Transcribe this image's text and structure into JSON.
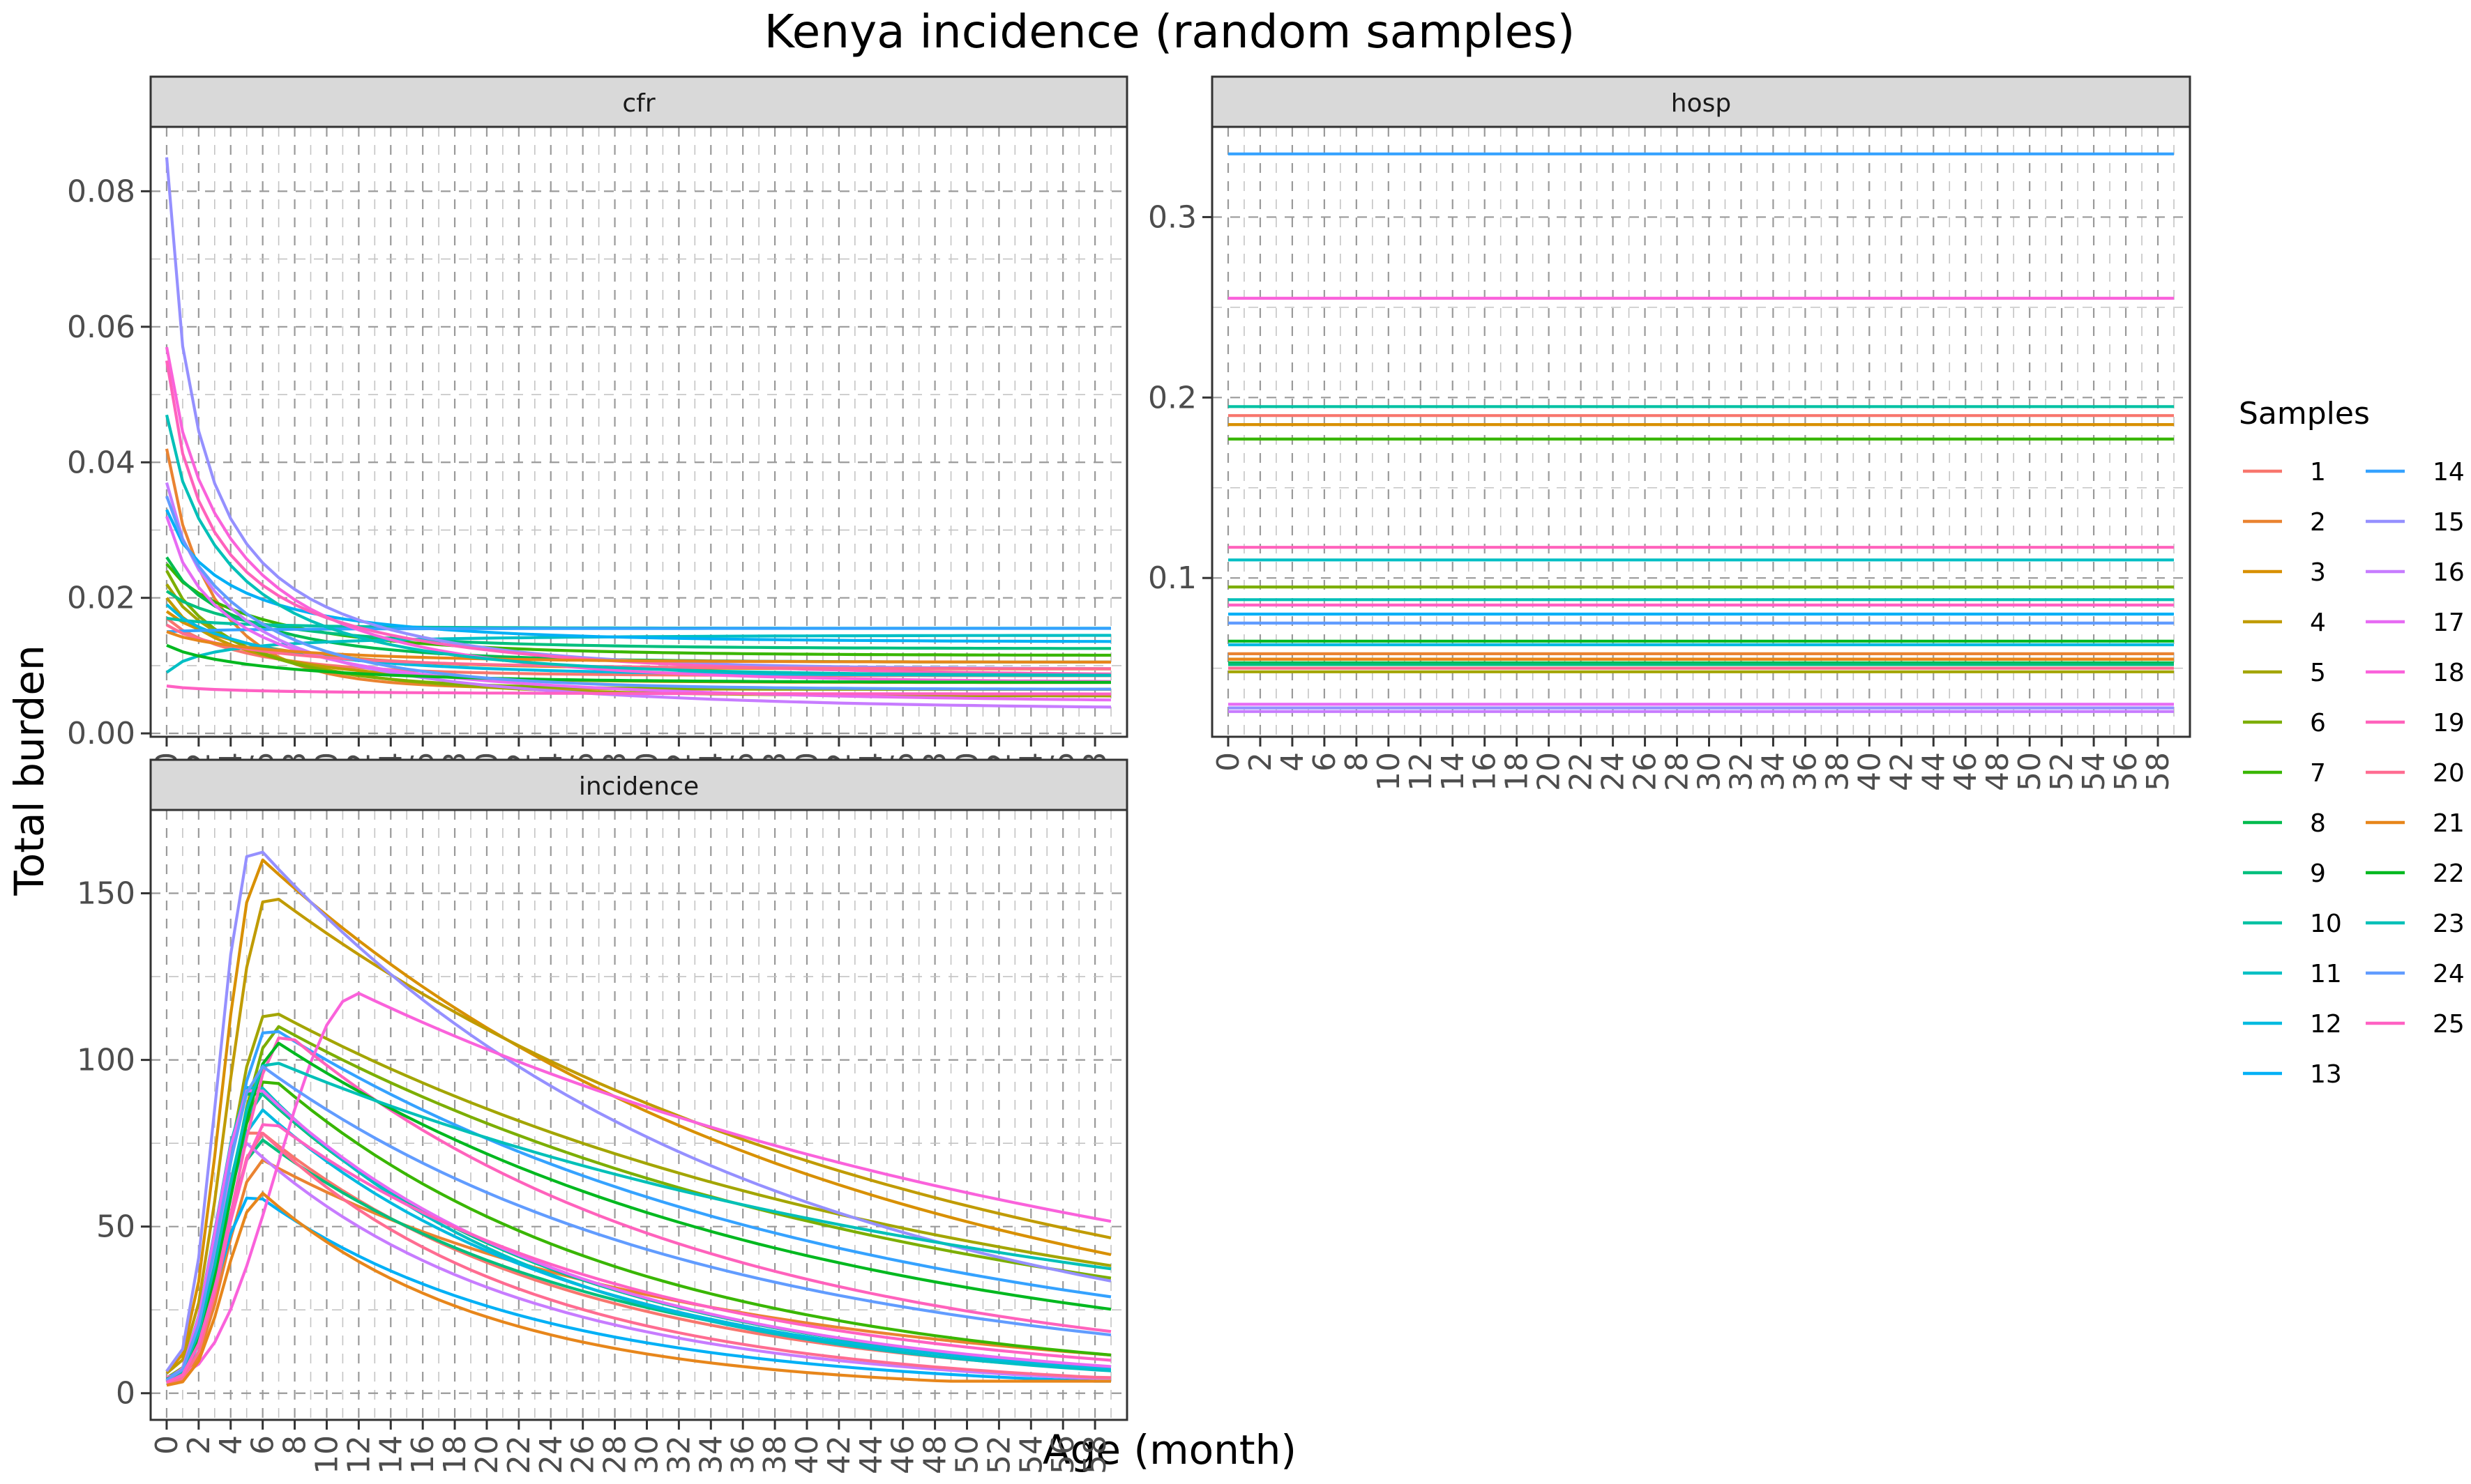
{
  "chart_data": {
    "type": "line",
    "title": "Kenya incidence (random samples)",
    "xlabel": "Age (month)",
    "ylabel": "Total burden",
    "legend_title": "Samples",
    "legend_position": "right",
    "grid": true,
    "x_ticks": [
      0,
      2,
      4,
      6,
      8,
      10,
      12,
      14,
      16,
      18,
      20,
      22,
      24,
      26,
      28,
      30,
      32,
      34,
      36,
      38,
      40,
      42,
      44,
      46,
      48,
      50,
      52,
      54,
      56,
      58
    ],
    "xlim": [
      -1,
      60
    ],
    "samples": [
      "1",
      "2",
      "3",
      "4",
      "5",
      "6",
      "7",
      "8",
      "9",
      "10",
      "11",
      "12",
      "13",
      "14",
      "15",
      "16",
      "17",
      "18",
      "19",
      "20",
      "21",
      "22",
      "23",
      "24",
      "25"
    ],
    "colors": [
      "#F8766D",
      "#EA8331",
      "#D89000",
      "#C09B00",
      "#A3A500",
      "#7CAE00",
      "#39B600",
      "#00BB4E",
      "#00BF7D",
      "#00C1A3",
      "#00BFC4",
      "#00BAE0",
      "#00B0F6",
      "#35A2FF",
      "#9590FF",
      "#C77CFF",
      "#E76BF3",
      "#FA62DB",
      "#FF62BC",
      "#FF6C91",
      "#E7861B",
      "#00B81F",
      "#00C0B8",
      "#619CFF",
      "#FF61C3"
    ],
    "panels": {
      "cfr": {
        "strip": "cfr",
        "ylim": [
          -0.0005,
          0.0895
        ],
        "y_ticks": [
          0.0,
          0.02,
          0.04,
          0.06,
          0.08
        ],
        "y_tick_labels": [
          "0.00",
          "0.02",
          "0.04",
          "0.06",
          "0.08"
        ],
        "series_params": [
          [
            0.017,
            0.0085,
            4,
            5
          ],
          [
            0.042,
            0.0065,
            2.5,
            3
          ],
          [
            0.018,
            0.0095,
            4,
            8
          ],
          [
            0.02,
            0.0075,
            3,
            9
          ],
          [
            0.022,
            0.0055,
            3.5,
            11
          ],
          [
            0.024,
            0.0065,
            3,
            7
          ],
          [
            0.025,
            0.0115,
            3.5,
            12
          ],
          [
            0.026,
            0.0105,
            3,
            10
          ],
          [
            0.021,
            0.0125,
            4,
            12
          ],
          [
            0.017,
            0.0155,
            3,
            12
          ],
          [
            0.009,
            0.0145,
            2,
            15
          ],
          [
            0.019,
            0.0085,
            3.5,
            14
          ],
          [
            0.033,
            0.0135,
            2.5,
            13
          ],
          [
            0.015,
            0.0155,
            3,
            12
          ],
          [
            0.085,
            0.0095,
            1.5,
            10
          ],
          [
            0.037,
            0.0035,
            2.5,
            18
          ],
          [
            0.032,
            0.0045,
            2.5,
            20
          ],
          [
            0.057,
            0.0075,
            2.5,
            13
          ],
          [
            0.055,
            0.0085,
            2,
            15
          ],
          [
            0.016,
            0.0095,
            3.5,
            14
          ],
          [
            0.015,
            0.0105,
            4,
            13
          ],
          [
            0.013,
            0.0075,
            4,
            14
          ],
          [
            0.047,
            0.0085,
            2.5,
            12
          ],
          [
            0.035,
            0.0065,
            3,
            10
          ],
          [
            0.007,
            0.0058,
            3,
            20
          ]
        ]
      },
      "hosp": {
        "strip": "hosp",
        "ylim": [
          0.012,
          0.35
        ],
        "y_ticks": [
          0.1,
          0.2,
          0.3
        ],
        "y_tick_labels": [
          "0.1",
          "0.2",
          "0.3"
        ],
        "levels": [
          0.19,
          0.058,
          0.185,
          0.055,
          0.048,
          0.095,
          0.177,
          0.053,
          0.052,
          0.195,
          0.11,
          0.063,
          0.08,
          0.335,
          0.028,
          0.026,
          0.03,
          0.255,
          0.117,
          0.05,
          0.055,
          0.065,
          0.088,
          0.075,
          0.085
        ]
      },
      "incidence": {
        "strip": "incidence",
        "ylim": [
          -8,
          175
        ],
        "y_ticks": [
          0,
          50,
          100,
          150
        ],
        "y_tick_labels": [
          "0",
          "50",
          "100",
          "150"
        ],
        "series_params": [
          [
            80,
            5.5,
            2.5,
            10
          ],
          [
            70,
            6,
            3,
            15
          ],
          [
            160,
            6,
            2.5,
            22
          ],
          [
            150,
            6.5,
            2.5,
            26
          ],
          [
            115,
            6.5,
            2.5,
            28
          ],
          [
            110,
            7,
            2.5,
            26
          ],
          [
            95,
            6.5,
            2.5,
            12
          ],
          [
            92,
            5.5,
            2.5,
            10
          ],
          [
            76,
            6,
            2.5,
            11
          ],
          [
            90,
            6,
            2.5,
            10
          ],
          [
            94,
            5.5,
            2.5,
            9
          ],
          [
            85,
            6,
            2.5,
            10
          ],
          [
            60,
            5.5,
            2.5,
            8
          ],
          [
            110,
            6.5,
            2.5,
            22
          ],
          [
            165,
            5.5,
            2.5,
            18
          ],
          [
            75,
            5,
            3,
            8
          ],
          [
            93,
            5.5,
            2.5,
            10
          ],
          [
            120,
            12,
            2.5,
            34
          ],
          [
            108,
            7.5,
            2.5,
            15
          ],
          [
            78,
            6,
            3,
            8
          ],
          [
            60,
            6,
            3,
            6
          ],
          [
            105,
            7,
            2.5,
            20
          ],
          [
            100,
            6.5,
            2.5,
            32
          ],
          [
            98,
            6,
            2.5,
            16
          ],
          [
            82,
            6.5,
            2.5,
            12
          ]
        ]
      }
    }
  }
}
